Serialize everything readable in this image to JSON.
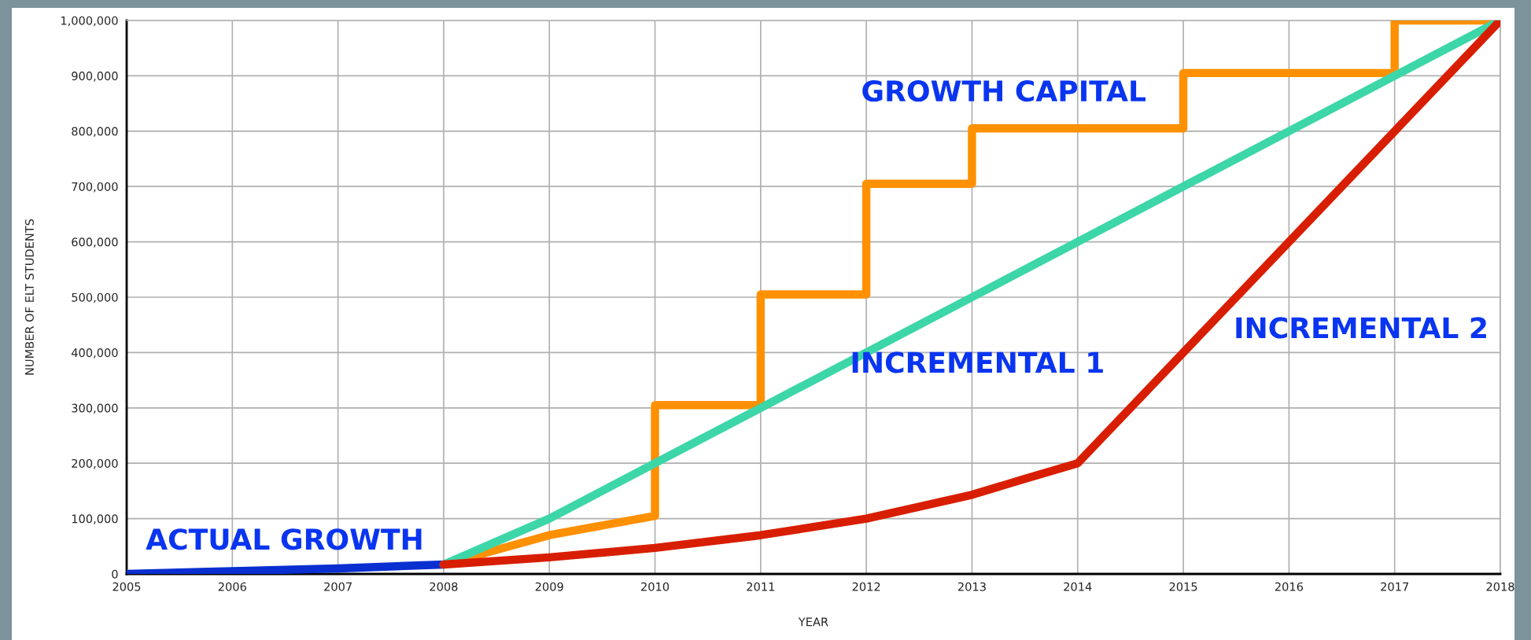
{
  "chart_data": {
    "type": "line",
    "xlabel": "YEAR",
    "ylabel": "NUMBER OF ELT STUDENTS",
    "xlim": [
      2005,
      2018
    ],
    "xticks": [
      2005,
      2006,
      2007,
      2008,
      2009,
      2010,
      2011,
      2012,
      2013,
      2014,
      2015,
      2016,
      2017,
      2018
    ],
    "ylim": [
      0,
      1000000
    ],
    "yticks": [
      {
        "value": 0,
        "label": "0"
      },
      {
        "value": 100000,
        "label": "100,000"
      },
      {
        "value": 200000,
        "label": "200,000"
      },
      {
        "value": 300000,
        "label": "300,000"
      },
      {
        "value": 400000,
        "label": "400,000"
      },
      {
        "value": 500000,
        "label": "500,000"
      },
      {
        "value": 600000,
        "label": "600,000"
      },
      {
        "value": 700000,
        "label": "700,000"
      },
      {
        "value": 800000,
        "label": "800,000"
      },
      {
        "value": 900000,
        "label": "900,000"
      },
      {
        "value": 1000000,
        "label": "1,000,000"
      }
    ],
    "grid": true,
    "marker": "none",
    "line_style": "solid",
    "series": [
      {
        "name": "ACTUAL GROWTH",
        "color": "#0a2fd0",
        "x": [
          2005,
          2006,
          2007,
          2008
        ],
        "values": [
          0,
          5000,
          10000,
          17000
        ]
      },
      {
        "name": "GROWTH CAPITAL",
        "color": "#ff9000",
        "x": [
          2008,
          2009,
          2010,
          2010,
          2011,
          2011,
          2012,
          2012,
          2013,
          2013,
          2015,
          2015,
          2017,
          2017,
          2018
        ],
        "values": [
          17000,
          70000,
          105000,
          305000,
          305000,
          505000,
          505000,
          705000,
          705000,
          805000,
          805000,
          905000,
          905000,
          1000000,
          1000000
        ]
      },
      {
        "name": "INCREMENTAL 1",
        "color": "#3dd6a8",
        "x": [
          2008,
          2009,
          2010,
          2011,
          2012,
          2013,
          2014,
          2015,
          2016,
          2017,
          2018
        ],
        "values": [
          17000,
          100000,
          200000,
          300000,
          400000,
          500000,
          600000,
          700000,
          800000,
          900000,
          1000000
        ]
      },
      {
        "name": "INCREMENTAL 2",
        "color": "#d81e00",
        "x": [
          2008,
          2009,
          2010,
          2011,
          2012,
          2013,
          2013.5,
          2014,
          2015,
          2016,
          2017,
          2018
        ],
        "values": [
          17000,
          30000,
          47000,
          70000,
          100000,
          143000,
          172000,
          200000,
          400000,
          600000,
          800000,
          1000000
        ]
      }
    ]
  }
}
